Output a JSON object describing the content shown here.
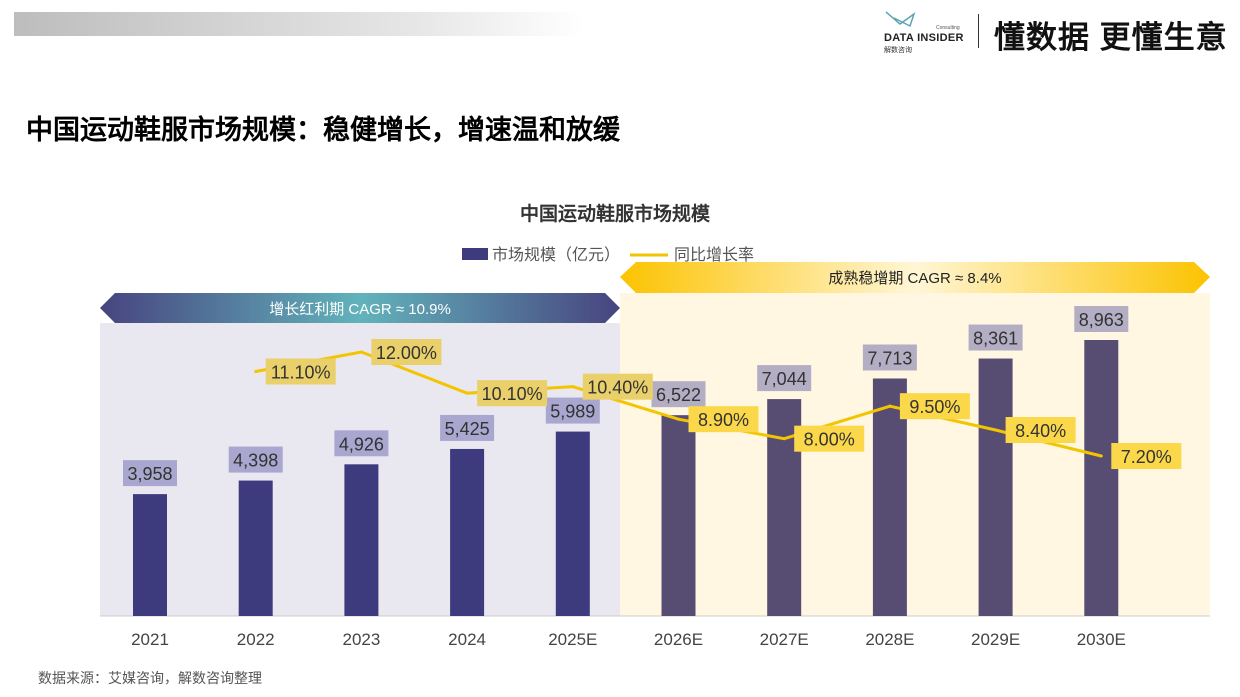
{
  "header": {
    "logo_brand": "DATA INSIDER",
    "logo_sub": "解数咨询",
    "logo_consulting": "Consulting",
    "slogan": "懂数据 更懂生意"
  },
  "page_title": "中国运动鞋服市场规模：稳健增长，增速温和放缓",
  "source": "数据来源：艾媒咨询，解数咨询整理",
  "colors": {
    "bar_actual": "#3e3a7e",
    "bar_forecast": "#574d72",
    "line": "#f2c500",
    "left_bg": "#e9e8f0",
    "right_bg": "#fff7e2"
  },
  "chart_data": {
    "type": "bar+line",
    "title": "中国运动鞋服市场规模",
    "legend": {
      "placement": "top",
      "items": [
        "市场规模（亿元）",
        "同比增长率"
      ]
    },
    "categories": [
      "2021",
      "2022",
      "2023",
      "2024",
      "2025E",
      "2026E",
      "2027E",
      "2028E",
      "2029E",
      "2030E"
    ],
    "series": [
      {
        "name": "市场规模（亿元）",
        "type": "bar",
        "values": [
          3958,
          4398,
          4926,
          5425,
          5989,
          6522,
          7044,
          7713,
          8361,
          8963
        ],
        "labels": [
          "3,958",
          "4,398",
          "4,926",
          "5,425",
          "5,989",
          "6,522",
          "7,044",
          "7,713",
          "8,361",
          "8,963"
        ]
      },
      {
        "name": "同比增长率",
        "type": "line",
        "values": [
          null,
          11.1,
          12.0,
          10.1,
          10.4,
          8.9,
          8.0,
          9.5,
          8.4,
          7.2
        ],
        "labels": [
          "",
          "11.10%",
          "12.00%",
          "10.10%",
          "10.40%",
          "8.90%",
          "8.00%",
          "9.50%",
          "8.40%",
          "7.20%"
        ]
      }
    ],
    "periods": [
      {
        "label": "增长红利期 CAGR ≈ 10.9%",
        "from": "2021",
        "to": "2025E"
      },
      {
        "label": "成熟稳增期 CAGR ≈ 8.4%",
        "from": "2026E",
        "to": "2030E"
      }
    ]
  }
}
